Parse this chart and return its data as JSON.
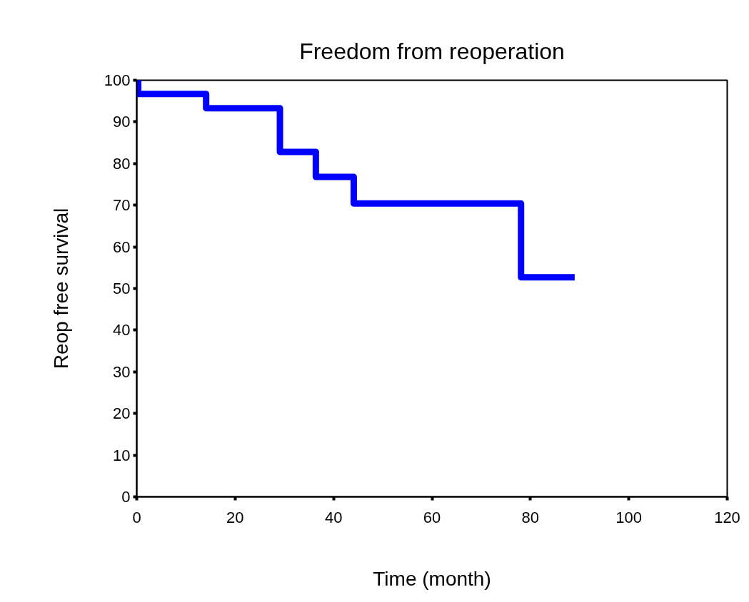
{
  "chart_data": {
    "type": "step",
    "title": "Freedom from reoperation",
    "xlabel": "Time (month)",
    "ylabel": "Reop free survival",
    "x": [
      0,
      0.3,
      14.1,
      29.1,
      36.4,
      44.1,
      78.1,
      89
    ],
    "series": [
      {
        "color": "#0000ff",
        "values": [
          100,
          96.7,
          93.3,
          82.8,
          76.8,
          70.4,
          52.7,
          52.7
        ]
      }
    ],
    "xlim": [
      0,
      120
    ],
    "ylim": [
      0,
      100
    ],
    "xticks": [
      0,
      20,
      40,
      60,
      80,
      100,
      120
    ],
    "yticks": [
      0,
      10,
      20,
      30,
      40,
      50,
      60,
      70,
      80,
      90,
      100
    ],
    "grid": false,
    "marker": "none",
    "line_style": "solid"
  }
}
